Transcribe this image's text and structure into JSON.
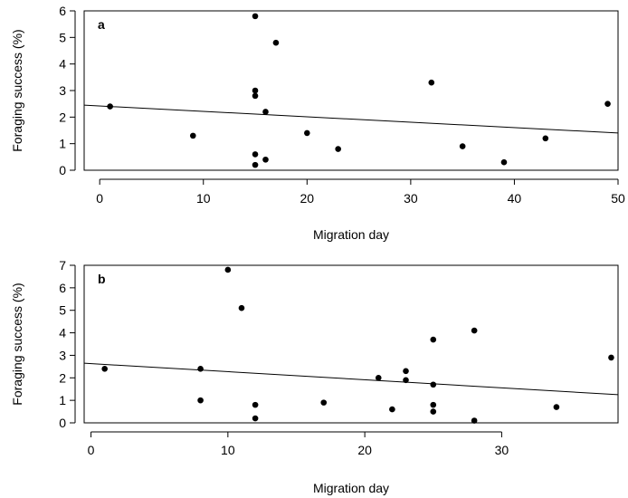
{
  "chart_data": [
    {
      "type": "scatter",
      "panel_label": "a",
      "xlabel": "Migration day",
      "ylabel": "Foraging success (%)",
      "xlim": [
        -1.5,
        50
      ],
      "ylim": [
        0,
        6
      ],
      "xticks": [
        0,
        10,
        20,
        30,
        40,
        50
      ],
      "yticks": [
        0,
        1,
        2,
        3,
        4,
        5,
        6
      ],
      "grid": false,
      "points": [
        {
          "x": 1,
          "y": 2.4
        },
        {
          "x": 9,
          "y": 1.3
        },
        {
          "x": 15,
          "y": 5.8
        },
        {
          "x": 15,
          "y": 3.0
        },
        {
          "x": 15,
          "y": 2.8
        },
        {
          "x": 15,
          "y": 0.6
        },
        {
          "x": 15,
          "y": 0.2
        },
        {
          "x": 16,
          "y": 2.2
        },
        {
          "x": 16,
          "y": 0.4
        },
        {
          "x": 17,
          "y": 4.8
        },
        {
          "x": 20,
          "y": 1.4
        },
        {
          "x": 23,
          "y": 0.8
        },
        {
          "x": 32,
          "y": 3.3
        },
        {
          "x": 35,
          "y": 0.9
        },
        {
          "x": 39,
          "y": 0.3
        },
        {
          "x": 43,
          "y": 1.2
        },
        {
          "x": 49,
          "y": 2.5
        }
      ],
      "trend_line": {
        "x": [
          -1.5,
          50
        ],
        "y": [
          2.45,
          1.4
        ]
      }
    },
    {
      "type": "scatter",
      "panel_label": "b",
      "xlabel": "Migration day",
      "ylabel": "Foraging success (%)",
      "xlim": [
        -0.5,
        38.5
      ],
      "ylim": [
        0,
        7
      ],
      "xticks": [
        0,
        10,
        20,
        30
      ],
      "yticks": [
        0,
        1,
        2,
        3,
        4,
        5,
        6,
        7
      ],
      "grid": false,
      "points": [
        {
          "x": 1,
          "y": 2.4
        },
        {
          "x": 8,
          "y": 2.4
        },
        {
          "x": 8,
          "y": 1.0
        },
        {
          "x": 10,
          "y": 6.8
        },
        {
          "x": 11,
          "y": 5.1
        },
        {
          "x": 12,
          "y": 0.8
        },
        {
          "x": 12,
          "y": 0.2
        },
        {
          "x": 17,
          "y": 0.9
        },
        {
          "x": 21,
          "y": 2.0
        },
        {
          "x": 22,
          "y": 0.6
        },
        {
          "x": 23,
          "y": 2.3
        },
        {
          "x": 23,
          "y": 1.9
        },
        {
          "x": 25,
          "y": 3.7
        },
        {
          "x": 25,
          "y": 1.7
        },
        {
          "x": 25,
          "y": 0.8
        },
        {
          "x": 25,
          "y": 0.5
        },
        {
          "x": 28,
          "y": 4.1
        },
        {
          "x": 28,
          "y": 0.1
        },
        {
          "x": 34,
          "y": 0.7
        },
        {
          "x": 38,
          "y": 2.9
        }
      ],
      "trend_line": {
        "x": [
          -0.5,
          38.5
        ],
        "y": [
          2.65,
          1.25
        ]
      }
    }
  ]
}
